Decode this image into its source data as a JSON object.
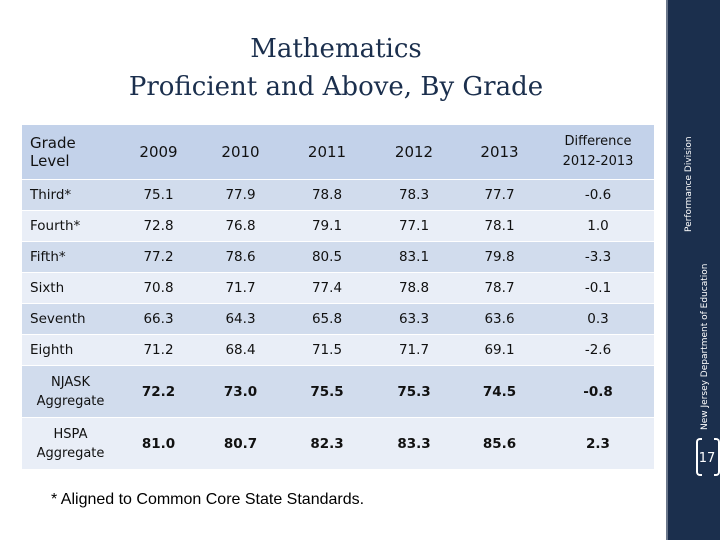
{
  "title": {
    "line1": "Mathematics",
    "line2": "Proficient and Above, By Grade"
  },
  "table": {
    "header": {
      "grade_level": "Grade Level",
      "years": [
        "2009",
        "2010",
        "2011",
        "2012",
        "2013"
      ],
      "difference_line1": "Difference",
      "difference_line2": "2012-2013"
    },
    "rows": [
      {
        "grade": "Third*",
        "values": [
          "75.1",
          "77.9",
          "78.8",
          "78.3",
          "77.7"
        ],
        "diff": "-0.6"
      },
      {
        "grade": "Fourth*",
        "values": [
          "72.8",
          "76.8",
          "79.1",
          "77.1",
          "78.1"
        ],
        "diff": "1.0"
      },
      {
        "grade": "Fifth*",
        "values": [
          "77.2",
          "78.6",
          "80.5",
          "83.1",
          "79.8"
        ],
        "diff": "-3.3"
      },
      {
        "grade": "Sixth",
        "values": [
          "70.8",
          "71.7",
          "77.4",
          "78.8",
          "78.7"
        ],
        "diff": "-0.1"
      },
      {
        "grade": "Seventh",
        "values": [
          "66.3",
          "64.3",
          "65.8",
          "63.3",
          "63.6"
        ],
        "diff": "0.3"
      },
      {
        "grade": "Eighth",
        "values": [
          "71.2",
          "68.4",
          "71.5",
          "71.7",
          "69.1"
        ],
        "diff": "-2.6"
      }
    ],
    "aggregates": [
      {
        "line1": "NJASK",
        "line2": "Aggregate",
        "values": [
          "72.2",
          "73.0",
          "75.5",
          "75.3",
          "74.5"
        ],
        "diff": "-0.8"
      },
      {
        "line1": "HSPA",
        "line2": "Aggregate",
        "values": [
          "81.0",
          "80.7",
          "82.3",
          "83.3",
          "85.6"
        ],
        "diff": "2.3"
      }
    ]
  },
  "footnote": "* Aligned to Common Core State Standards.",
  "sidebar": {
    "division": "Performance Division",
    "department": "New Jersey Department of Education",
    "page_number": "17"
  },
  "colors": {
    "sidebar": "#1b2f4d",
    "header_row": "#c3d2ea",
    "band_dark": "#d1dced",
    "band_light": "#e9eef7"
  }
}
